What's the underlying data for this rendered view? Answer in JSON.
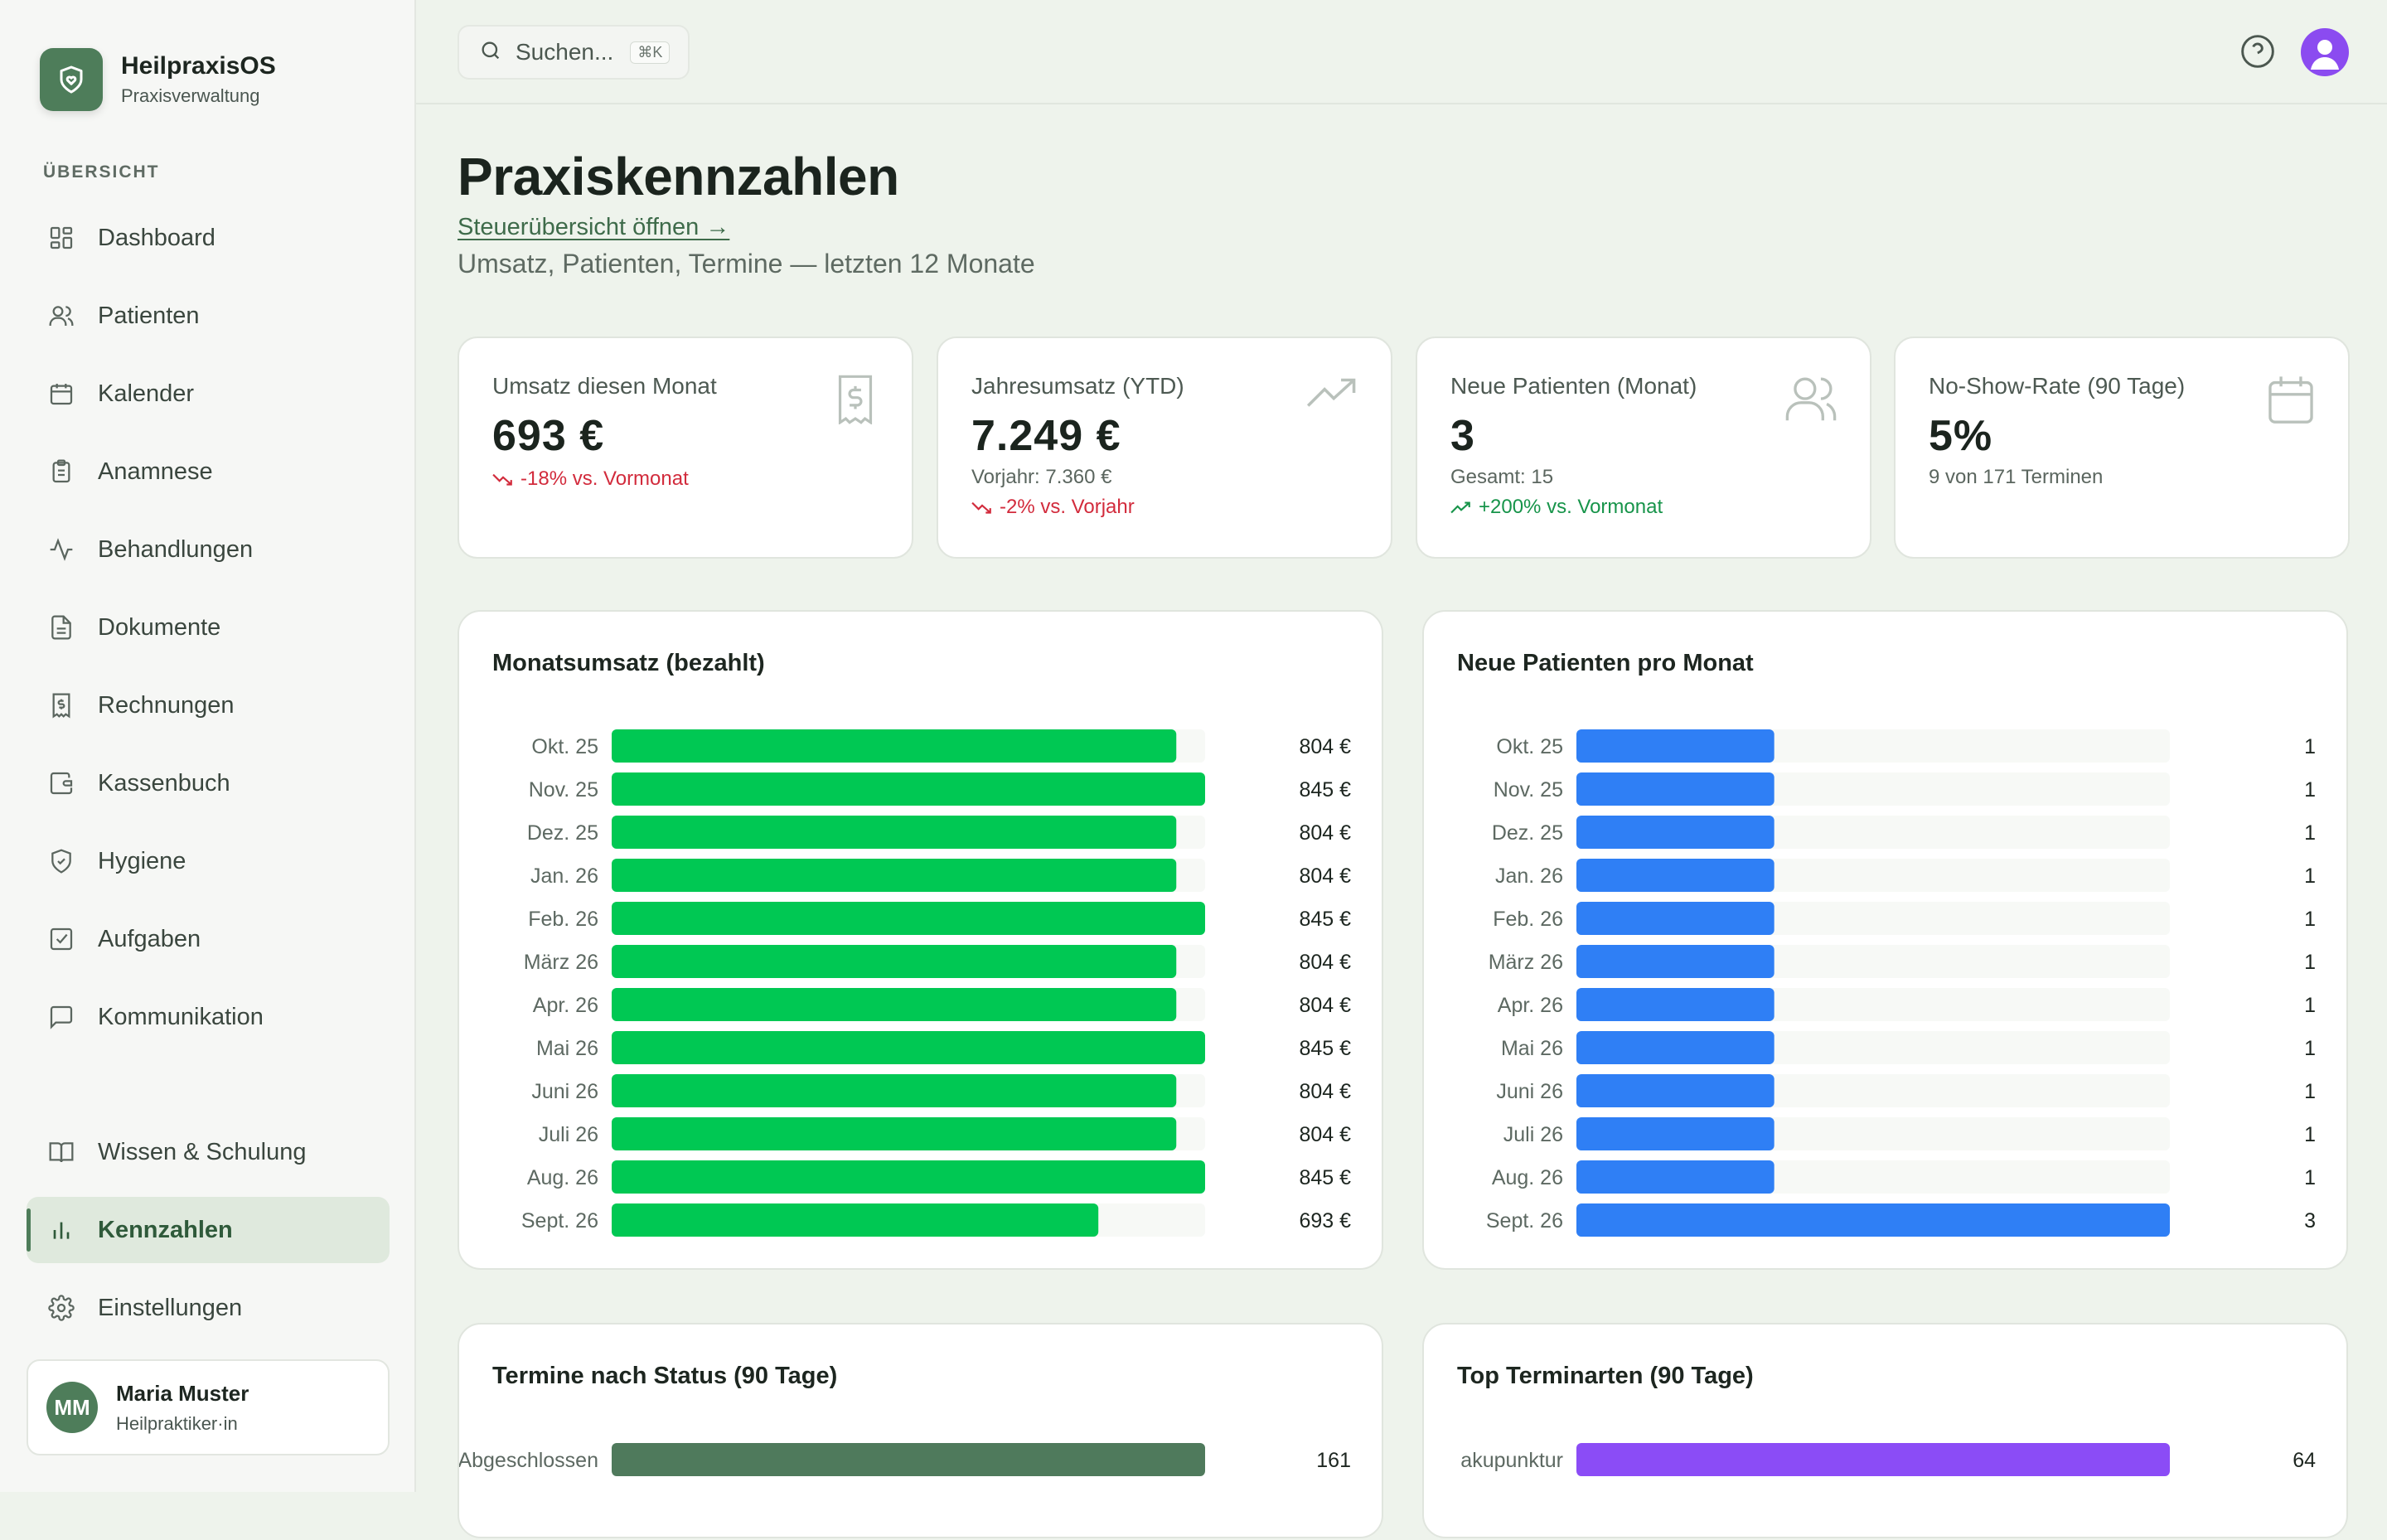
{
  "brand": {
    "title": "HeilpraxisOS",
    "subtitle": "Praxisverwaltung"
  },
  "sidebar": {
    "section_label": "ÜBERSICHT",
    "items": [
      {
        "label": "Dashboard",
        "icon": "dashboard-icon"
      },
      {
        "label": "Patienten",
        "icon": "users-icon"
      },
      {
        "label": "Kalender",
        "icon": "calendar-icon"
      },
      {
        "label": "Anamnese",
        "icon": "clipboard-icon"
      },
      {
        "label": "Behandlungen",
        "icon": "activity-icon"
      },
      {
        "label": "Dokumente",
        "icon": "document-icon"
      },
      {
        "label": "Rechnungen",
        "icon": "receipt-icon"
      },
      {
        "label": "Kassenbuch",
        "icon": "wallet-icon"
      },
      {
        "label": "Hygiene",
        "icon": "shield-icon"
      },
      {
        "label": "Aufgaben",
        "icon": "checkbox-icon"
      },
      {
        "label": "Kommunikation",
        "icon": "message-icon"
      }
    ],
    "bottom_items": [
      {
        "label": "Wissen & Schulung",
        "icon": "book-icon"
      },
      {
        "label": "Kennzahlen",
        "icon": "bar-chart-icon",
        "active": true
      },
      {
        "label": "Einstellungen",
        "icon": "gear-icon"
      }
    ],
    "user": {
      "initials": "MM",
      "name": "Maria Muster",
      "role": "Heilpraktiker·in"
    }
  },
  "topbar": {
    "search_placeholder": "Suchen...",
    "shortcut": "⌘K"
  },
  "page": {
    "title": "Praxiskennzahlen",
    "link": "Steuerübersicht öffnen →",
    "subtitle": "Umsatz, Patienten, Termine — letzten 12 Monate"
  },
  "kpis": [
    {
      "label": "Umsatz diesen Monat",
      "value": "693 €",
      "meta": "",
      "trend": "-18% vs. Vormonat",
      "trend_dir": "down",
      "icon": "receipt-icon"
    },
    {
      "label": "Jahresumsatz (YTD)",
      "value": "7.249 €",
      "meta": "Vorjahr: 7.360 €",
      "trend": "-2% vs. Vorjahr",
      "trend_dir": "down",
      "icon": "trending-up-icon"
    },
    {
      "label": "Neue Patienten (Monat)",
      "value": "3",
      "meta": "Gesamt: 15",
      "trend": "+200% vs. Vormonat",
      "trend_dir": "up",
      "icon": "users-icon"
    },
    {
      "label": "No-Show-Rate (90 Tage)",
      "value": "5%",
      "meta": "9 von 171 Terminen",
      "trend": "",
      "trend_dir": "",
      "icon": "calendar-icon"
    }
  ],
  "colors": {
    "accent": "#4e7d5a",
    "revenue_bar": "#00c853",
    "patients_bar": "#2f7ff5",
    "status_bar": "#4f7a5c",
    "types_bar": "#8b4cf6",
    "down": "#d22b3c",
    "up": "#17944a"
  },
  "chart_data": [
    {
      "type": "bar",
      "title": "Monatsumsatz (bezahlt)",
      "orientation": "horizontal",
      "categories": [
        "Okt. 25",
        "Nov. 25",
        "Dez. 25",
        "Jan. 26",
        "Feb. 26",
        "März 26",
        "Apr. 26",
        "Mai 26",
        "Juni 26",
        "Juli 26",
        "Aug. 26",
        "Sept. 26"
      ],
      "values": [
        804,
        845,
        804,
        804,
        845,
        804,
        804,
        845,
        804,
        804,
        845,
        693
      ],
      "value_labels": [
        "804 €",
        "845 €",
        "804 €",
        "804 €",
        "845 €",
        "804 €",
        "804 €",
        "845 €",
        "804 €",
        "804 €",
        "845 €",
        "693 €"
      ],
      "xlim": [
        0,
        845
      ],
      "color": "#00c853"
    },
    {
      "type": "bar",
      "title": "Neue Patienten pro Monat",
      "orientation": "horizontal",
      "categories": [
        "Okt. 25",
        "Nov. 25",
        "Dez. 25",
        "Jan. 26",
        "Feb. 26",
        "März 26",
        "Apr. 26",
        "Mai 26",
        "Juni 26",
        "Juli 26",
        "Aug. 26",
        "Sept. 26"
      ],
      "values": [
        1,
        1,
        1,
        1,
        1,
        1,
        1,
        1,
        1,
        1,
        1,
        3
      ],
      "value_labels": [
        "1",
        "1",
        "1",
        "1",
        "1",
        "1",
        "1",
        "1",
        "1",
        "1",
        "1",
        "3"
      ],
      "xlim": [
        0,
        3
      ],
      "color": "#2f7ff5"
    },
    {
      "type": "bar",
      "title": "Termine nach Status (90 Tage)",
      "orientation": "horizontal",
      "categories": [
        "Abgeschlossen"
      ],
      "values": [
        161
      ],
      "value_labels": [
        "161"
      ],
      "xlim": [
        0,
        161
      ],
      "color": "#4f7a5c"
    },
    {
      "type": "bar",
      "title": "Top Terminarten (90 Tage)",
      "orientation": "horizontal",
      "categories": [
        "akupunktur"
      ],
      "values": [
        64
      ],
      "value_labels": [
        "64"
      ],
      "xlim": [
        0,
        64
      ],
      "color": "#8b4cf6"
    }
  ]
}
